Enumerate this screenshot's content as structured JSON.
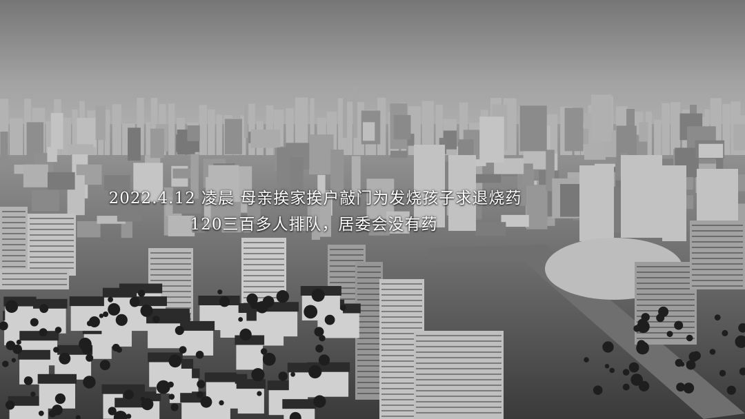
{
  "photo": {
    "description_icon": "city-skyline-photo",
    "palette": {
      "sky_top": "#7d7d7d",
      "sky_horizon": "#a9a9a9",
      "haze": "#9c9c9c",
      "buildings_far": "#b3b3b3",
      "buildings_mid": "#8f8f8f",
      "buildings_near": "#4a4a4a",
      "roofs": "#2b2b2b",
      "trees": "#1e1e1e",
      "caption_text": "#ffffff"
    }
  },
  "caption": {
    "line1": "2022.4.12 凌晨 母亲挨家挨户敲门为发烧孩子求退烧药",
    "line2": "120三百多人排队，居委会没有药"
  }
}
